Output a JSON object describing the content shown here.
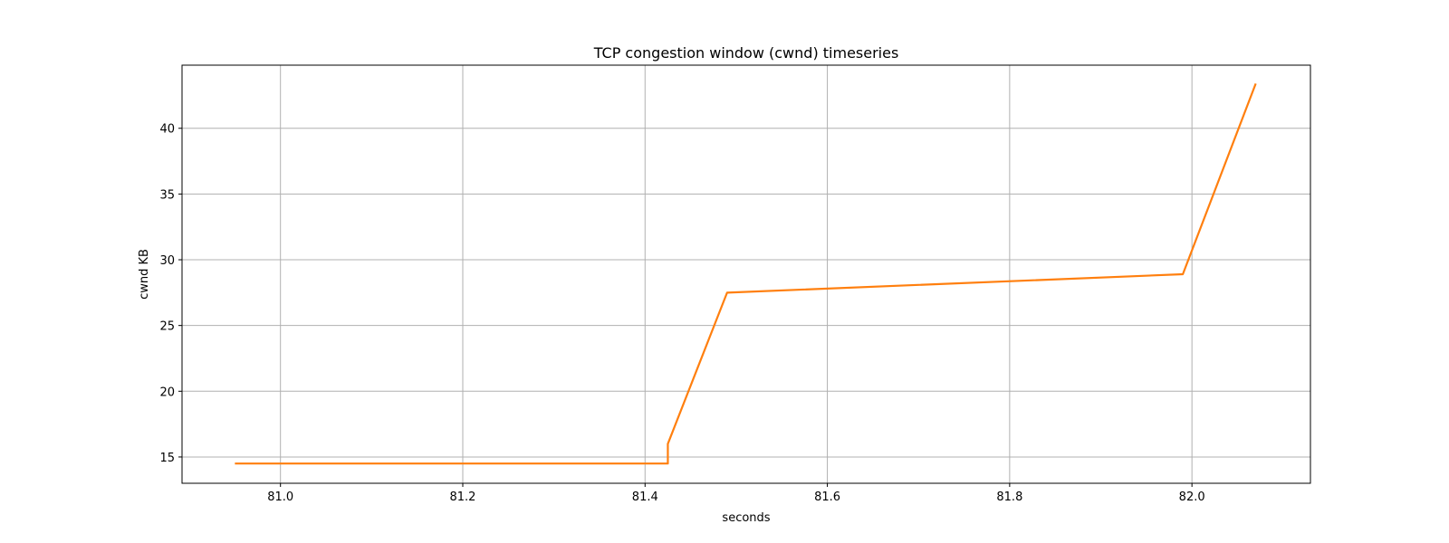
{
  "chart_data": {
    "type": "line",
    "title": "TCP congestion window (cwnd) timeseries",
    "xlabel": "seconds",
    "ylabel": "cwnd KB",
    "xlim": [
      80.892,
      82.13
    ],
    "ylim": [
      13.0,
      44.8
    ],
    "xticks": [
      {
        "value": 81.0,
        "label": "81.0"
      },
      {
        "value": 81.2,
        "label": "81.2"
      },
      {
        "value": 81.4,
        "label": "81.4"
      },
      {
        "value": 81.6,
        "label": "81.6"
      },
      {
        "value": 81.8,
        "label": "81.8"
      },
      {
        "value": 82.0,
        "label": "82.0"
      }
    ],
    "yticks": [
      {
        "value": 15,
        "label": "15"
      },
      {
        "value": 20,
        "label": "20"
      },
      {
        "value": 25,
        "label": "25"
      },
      {
        "value": 30,
        "label": "30"
      },
      {
        "value": 35,
        "label": "35"
      },
      {
        "value": 40,
        "label": "40"
      }
    ],
    "grid": true,
    "series": [
      {
        "color": "#ff7f0e",
        "x": [
          80.95,
          81.425,
          81.425,
          81.49,
          81.99,
          82.07
        ],
        "y": [
          14.5,
          14.5,
          16.0,
          27.5,
          28.9,
          43.4
        ]
      }
    ]
  }
}
